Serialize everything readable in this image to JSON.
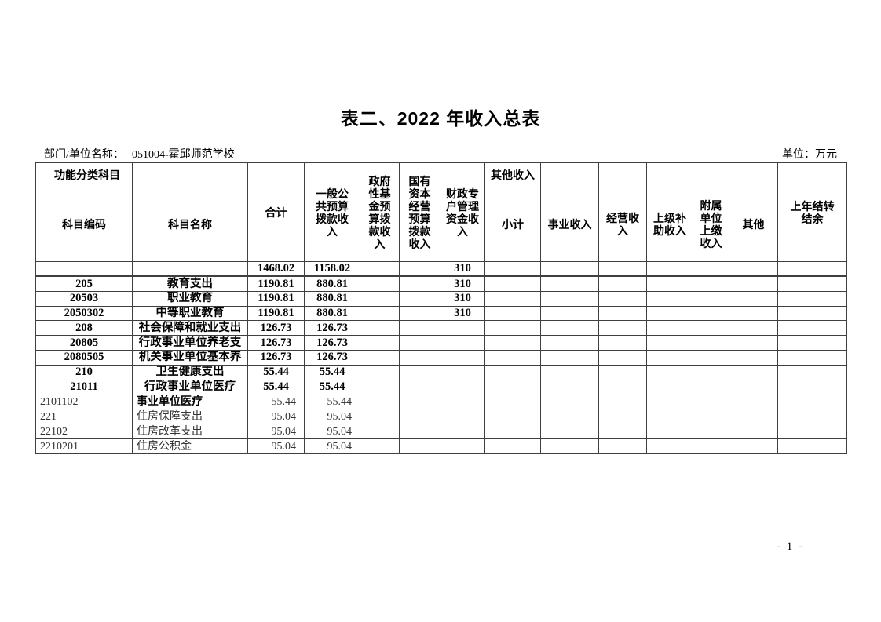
{
  "page": {
    "title": "表二、2022 年收入总表",
    "dept_label": "部门/单位名称：",
    "dept_value": "051004-霍邱师范学校",
    "unit_label": "单位：万元",
    "page_number": "- 1 -"
  },
  "colors": {
    "grid": "#3f3f3f",
    "text": "#000000",
    "text_light": "#333333",
    "background": "#ffffff"
  },
  "table": {
    "header": {
      "func_group": "功能分类科目",
      "code": "科目编码",
      "name": "科目名称",
      "total": "合计",
      "general": "一般公共预算拨款收入",
      "gov_fund": "政府性基金预算拨款收入",
      "state_capital": "国有资本经营预算拨款收入",
      "fiscal_special": "财政专户管理资金收入",
      "other_income_group": "其他收入",
      "other_subtotal": "小计",
      "business": "事业收入",
      "operating": "经营收入",
      "superior": "上级补助收入",
      "affiliated": "附属单位上缴收入",
      "other": "其他",
      "carryover": "上年结转结余"
    },
    "column_keys": [
      "code",
      "name",
      "total",
      "general",
      "gov_fund",
      "state_capital",
      "fiscal_special",
      "other_subtotal",
      "business",
      "operating",
      "superior",
      "affiliated",
      "other",
      "carryover"
    ],
    "rows": [
      {
        "style": "bold",
        "code": "",
        "name": "",
        "total": "1468.02",
        "general": "1158.02",
        "gov_fund": "",
        "state_capital": "",
        "fiscal_special": "310",
        "other_subtotal": "",
        "business": "",
        "operating": "",
        "superior": "",
        "affiliated": "",
        "other": "",
        "carryover": ""
      },
      {
        "style": "bold",
        "code": "205",
        "name": "教育支出",
        "total": "1190.81",
        "general": "880.81",
        "gov_fund": "",
        "state_capital": "",
        "fiscal_special": "310",
        "other_subtotal": "",
        "business": "",
        "operating": "",
        "superior": "",
        "affiliated": "",
        "other": "",
        "carryover": ""
      },
      {
        "style": "bold",
        "code": "20503",
        "name": "职业教育",
        "total": "1190.81",
        "general": "880.81",
        "gov_fund": "",
        "state_capital": "",
        "fiscal_special": "310",
        "other_subtotal": "",
        "business": "",
        "operating": "",
        "superior": "",
        "affiliated": "",
        "other": "",
        "carryover": ""
      },
      {
        "style": "bold",
        "code": "2050302",
        "name": "中等职业教育",
        "total": "1190.81",
        "general": "880.81",
        "gov_fund": "",
        "state_capital": "",
        "fiscal_special": "310",
        "other_subtotal": "",
        "business": "",
        "operating": "",
        "superior": "",
        "affiliated": "",
        "other": "",
        "carryover": ""
      },
      {
        "style": "bold",
        "code": "208",
        "name": "社会保障和就业支出",
        "total": "126.73",
        "general": "126.73",
        "gov_fund": "",
        "state_capital": "",
        "fiscal_special": "",
        "other_subtotal": "",
        "business": "",
        "operating": "",
        "superior": "",
        "affiliated": "",
        "other": "",
        "carryover": ""
      },
      {
        "style": "bold",
        "code": "20805",
        "name": "行政事业单位养老支",
        "total": "126.73",
        "general": "126.73",
        "gov_fund": "",
        "state_capital": "",
        "fiscal_special": "",
        "other_subtotal": "",
        "business": "",
        "operating": "",
        "superior": "",
        "affiliated": "",
        "other": "",
        "carryover": ""
      },
      {
        "style": "bold",
        "code": "2080505",
        "name": "机关事业单位基本养",
        "total": "126.73",
        "general": "126.73",
        "gov_fund": "",
        "state_capital": "",
        "fiscal_special": "",
        "other_subtotal": "",
        "business": "",
        "operating": "",
        "superior": "",
        "affiliated": "",
        "other": "",
        "carryover": ""
      },
      {
        "style": "bold",
        "code": "210",
        "name": "卫生健康支出",
        "total": "55.44",
        "general": "55.44",
        "gov_fund": "",
        "state_capital": "",
        "fiscal_special": "",
        "other_subtotal": "",
        "business": "",
        "operating": "",
        "superior": "",
        "affiliated": "",
        "other": "",
        "carryover": ""
      },
      {
        "style": "bold",
        "code": "21011",
        "name": "行政事业单位医疗",
        "total": "55.44",
        "general": "55.44",
        "gov_fund": "",
        "state_capital": "",
        "fiscal_special": "",
        "other_subtotal": "",
        "business": "",
        "operating": "",
        "superior": "",
        "affiliated": "",
        "other": "",
        "carryover": ""
      },
      {
        "style": "mixed",
        "code": "2101102",
        "name": "事业单位医疗",
        "total": "55.44",
        "general": "55.44",
        "gov_fund": "",
        "state_capital": "",
        "fiscal_special": "",
        "other_subtotal": "",
        "business": "",
        "operating": "",
        "superior": "",
        "affiliated": "",
        "other": "",
        "carryover": ""
      },
      {
        "style": "plain",
        "code": "221",
        "name": "住房保障支出",
        "total": "95.04",
        "general": "95.04",
        "gov_fund": "",
        "state_capital": "",
        "fiscal_special": "",
        "other_subtotal": "",
        "business": "",
        "operating": "",
        "superior": "",
        "affiliated": "",
        "other": "",
        "carryover": ""
      },
      {
        "style": "plain",
        "code": "22102",
        "name": "住房改革支出",
        "total": "95.04",
        "general": "95.04",
        "gov_fund": "",
        "state_capital": "",
        "fiscal_special": "",
        "other_subtotal": "",
        "business": "",
        "operating": "",
        "superior": "",
        "affiliated": "",
        "other": "",
        "carryover": ""
      },
      {
        "style": "plain",
        "code": "2210201",
        "name": "住房公积金",
        "total": "95.04",
        "general": "95.04",
        "gov_fund": "",
        "state_capital": "",
        "fiscal_special": "",
        "other_subtotal": "",
        "business": "",
        "operating": "",
        "superior": "",
        "affiliated": "",
        "other": "",
        "carryover": ""
      }
    ]
  }
}
